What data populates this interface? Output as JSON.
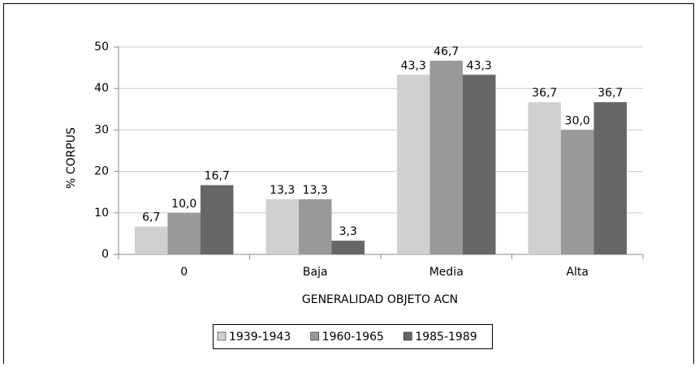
{
  "chart_data": {
    "type": "bar",
    "categories": [
      "0",
      "Baja",
      "Media",
      "Alta"
    ],
    "series": [
      {
        "name": "1939-1943",
        "color": "#d0d0d0",
        "values": [
          6.7,
          13.3,
          43.3,
          36.7
        ],
        "value_labels": [
          "6,7",
          "13,3",
          "43,3",
          "36,7"
        ]
      },
      {
        "name": "1960-1965",
        "color": "#999999",
        "values": [
          10.0,
          13.3,
          46.7,
          30.0
        ],
        "value_labels": [
          "10,0",
          "13,3",
          "46,7",
          "30,0"
        ]
      },
      {
        "name": "1985-1989",
        "color": "#666666",
        "values": [
          16.7,
          3.3,
          43.3,
          36.7
        ],
        "value_labels": [
          "16,7",
          "3,3",
          "43,3",
          "36,7"
        ]
      }
    ],
    "xlabel": "GENERALIDAD OBJETO ACN",
    "ylabel": "% CORPUS",
    "ylim": [
      0,
      50
    ],
    "yticks": [
      0,
      10,
      20,
      30,
      40,
      50
    ],
    "grid": true,
    "legend": "bottom"
  }
}
